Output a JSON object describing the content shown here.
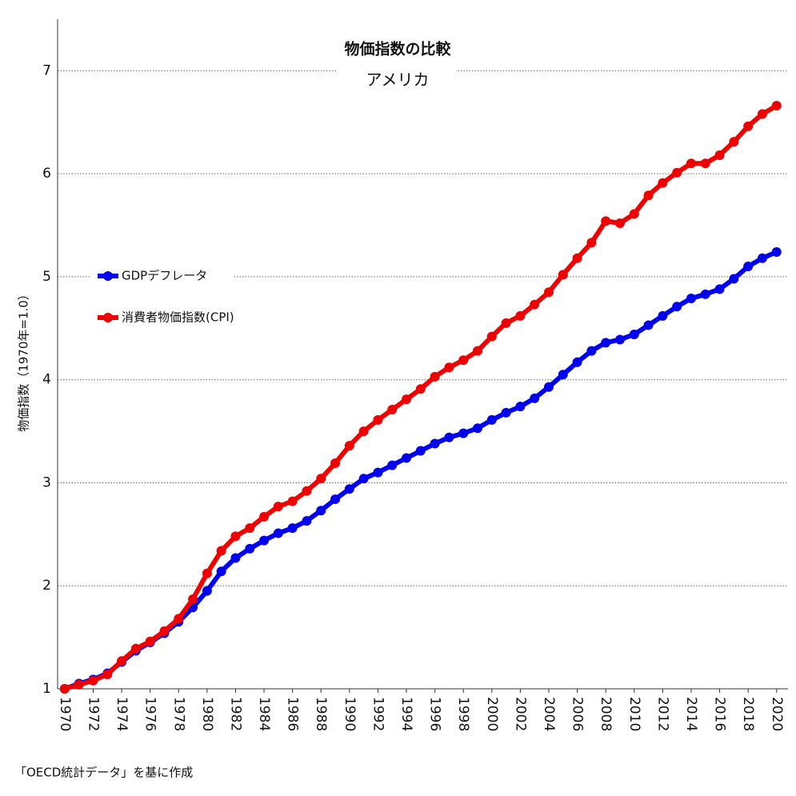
{
  "chart_data": {
    "type": "line",
    "title": "物価指数の比較",
    "subtitle": "アメリカ",
    "y_label": "物価指数（1970年=1.0）",
    "source": "「OECD統計データ」を基に作成",
    "x": [
      1970,
      1971,
      1972,
      1973,
      1974,
      1975,
      1976,
      1977,
      1978,
      1979,
      1980,
      1981,
      1982,
      1983,
      1984,
      1985,
      1986,
      1987,
      1988,
      1989,
      1990,
      1991,
      1992,
      1993,
      1994,
      1995,
      1996,
      1997,
      1998,
      1999,
      2000,
      2001,
      2002,
      2003,
      2004,
      2005,
      2006,
      2007,
      2008,
      2009,
      2010,
      2011,
      2012,
      2013,
      2014,
      2015,
      2016,
      2017,
      2018,
      2019,
      2020
    ],
    "xlim": [
      1969.5,
      2020.8
    ],
    "xticks": [
      1970,
      1972,
      1974,
      1976,
      1978,
      1980,
      1982,
      1984,
      1986,
      1988,
      1990,
      1992,
      1994,
      1996,
      1998,
      2000,
      2002,
      2004,
      2006,
      2008,
      2010,
      2012,
      2014,
      2016,
      2018,
      2020
    ],
    "ylim": [
      1,
      7.5
    ],
    "yticks": [
      1,
      2,
      3,
      4,
      5,
      6,
      7
    ],
    "grid": true,
    "series": [
      {
        "name": "GDPデフレータ",
        "color": "#0000ee",
        "values": [
          1.0,
          1.05,
          1.09,
          1.15,
          1.26,
          1.37,
          1.45,
          1.54,
          1.65,
          1.79,
          1.95,
          2.14,
          2.27,
          2.36,
          2.44,
          2.51,
          2.56,
          2.63,
          2.73,
          2.84,
          2.94,
          3.04,
          3.1,
          3.17,
          3.24,
          3.31,
          3.38,
          3.44,
          3.48,
          3.53,
          3.61,
          3.68,
          3.74,
          3.82,
          3.93,
          4.05,
          4.17,
          4.28,
          4.36,
          4.39,
          4.44,
          4.53,
          4.62,
          4.71,
          4.79,
          4.83,
          4.88,
          4.98,
          5.1,
          5.18,
          5.24
        ]
      },
      {
        "name": "消費者物価指数(CPI)",
        "color": "#ee0000",
        "values": [
          1.0,
          1.04,
          1.08,
          1.14,
          1.27,
          1.39,
          1.46,
          1.56,
          1.68,
          1.87,
          2.12,
          2.34,
          2.48,
          2.56,
          2.67,
          2.77,
          2.82,
          2.92,
          3.04,
          3.19,
          3.36,
          3.5,
          3.61,
          3.71,
          3.81,
          3.91,
          4.03,
          4.12,
          4.19,
          4.28,
          4.42,
          4.55,
          4.62,
          4.73,
          4.85,
          5.02,
          5.18,
          5.33,
          5.54,
          5.52,
          5.61,
          5.79,
          5.91,
          6.01,
          6.1,
          6.1,
          6.18,
          6.31,
          6.46,
          6.58,
          6.66
        ]
      }
    ]
  }
}
